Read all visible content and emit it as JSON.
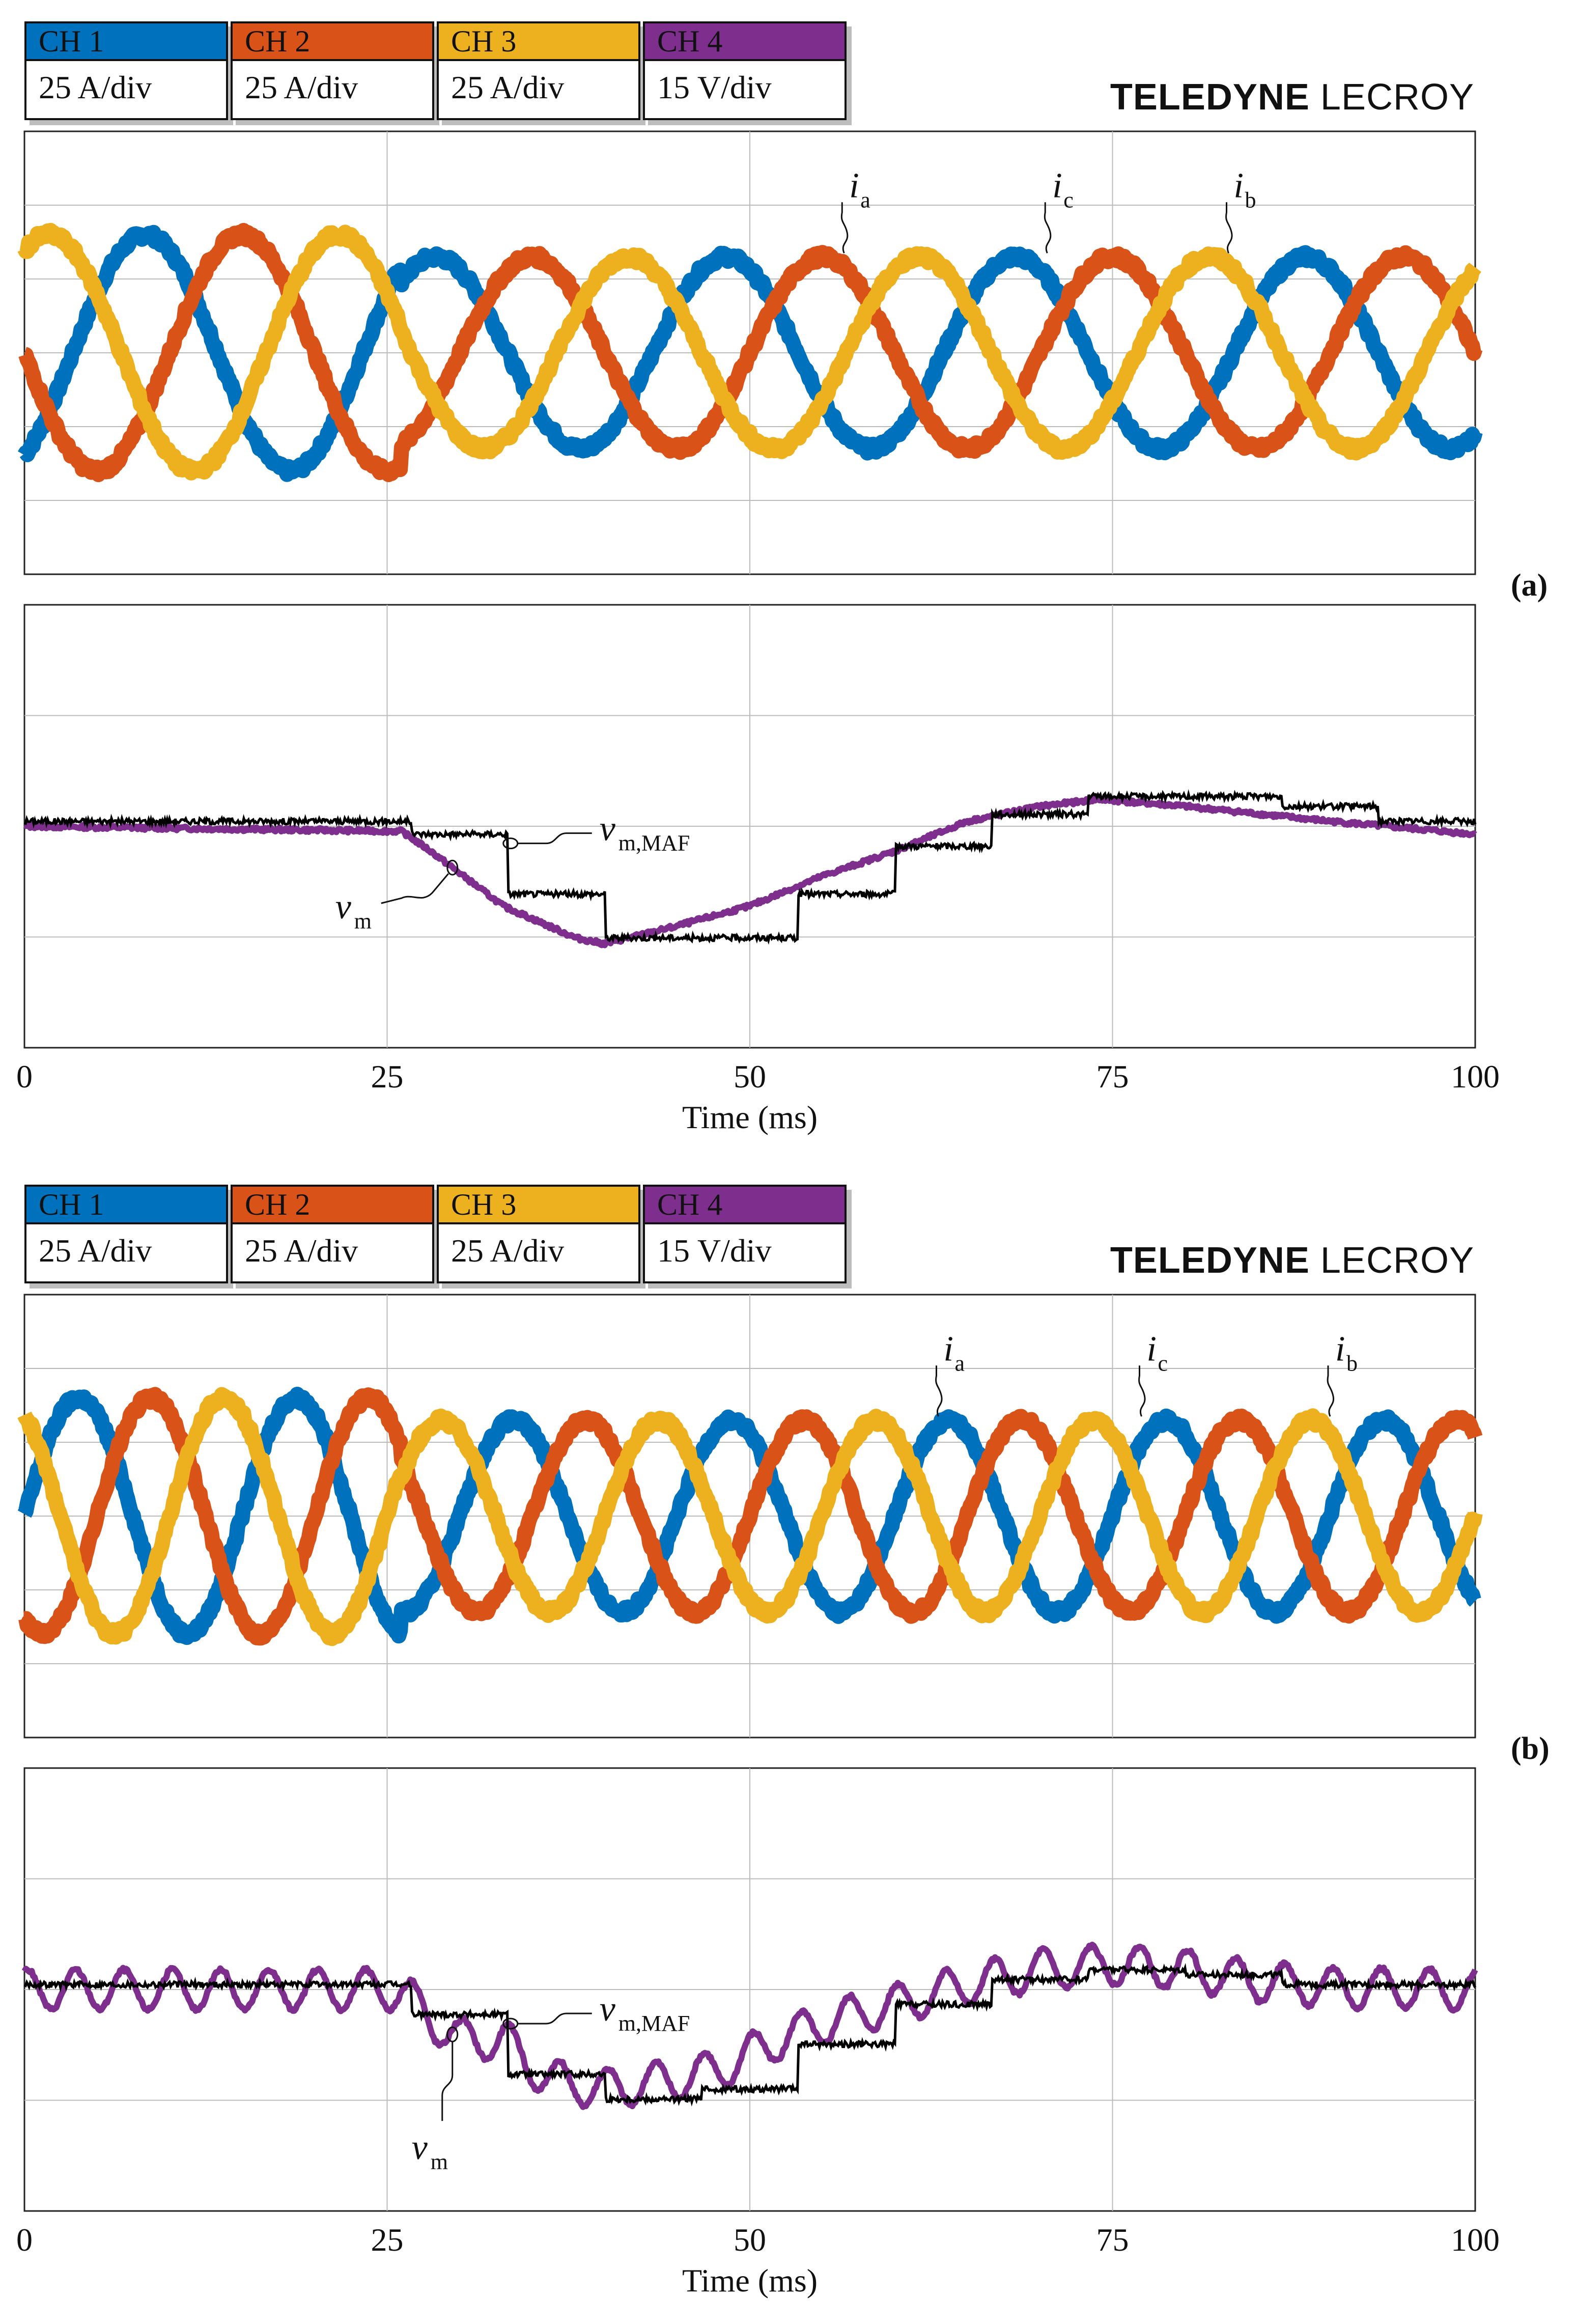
{
  "brand": {
    "bold": "TELEDYNE",
    "light": "LECROY"
  },
  "channels": [
    {
      "name": "CH 1",
      "scale": "25 A/div",
      "color": "#0072BD"
    },
    {
      "name": "CH 2",
      "scale": "25 A/div",
      "color": "#D95319"
    },
    {
      "name": "CH 3",
      "scale": "25 A/div",
      "color": "#EDB120"
    },
    {
      "name": "CH 4",
      "scale": "15 V/div",
      "color": "#7E2F8E"
    }
  ],
  "chart_data": [
    {
      "id": "a",
      "panel_label": "(a)",
      "type": "line",
      "xlabel": "Time (ms)",
      "xlim": [
        0,
        100
      ],
      "xticks": [
        0,
        25,
        50,
        75,
        100
      ],
      "tick_labels": [
        "0",
        "25",
        "50",
        "75",
        "100"
      ],
      "grid": true,
      "currents": {
        "ylim_div": [
          -3,
          3
        ],
        "frequency_hz": 50,
        "amplitude_div_before": 1.6,
        "amplitude_div_after": 1.3,
        "step_time_ms": 26,
        "phase_ia_deg": -60,
        "series": [
          {
            "name": "i_a",
            "channel": "CH 1",
            "phase_offset_deg": 0
          },
          {
            "name": "i_b",
            "channel": "CH 2",
            "phase_offset_deg": -120
          },
          {
            "name": "i_c",
            "channel": "CH 3",
            "phase_offset_deg": 120
          }
        ],
        "annotations": [
          {
            "label_main": "i",
            "label_sub": "a",
            "t_ms": 56.5
          },
          {
            "label_main": "i",
            "label_sub": "c",
            "t_ms": 70.5
          },
          {
            "label_main": "i",
            "label_sub": "b",
            "t_ms": 83.0
          }
        ]
      },
      "voltage": {
        "ylim_div": [
          -2,
          2
        ],
        "vm_ripple_div": 0.0,
        "vm_points": [
          [
            0,
            0
          ],
          [
            26,
            -0.05
          ],
          [
            28,
            -0.25
          ],
          [
            33,
            -0.8
          ],
          [
            38,
            -1.12
          ],
          [
            40,
            -1.18
          ],
          [
            45,
            -1.0
          ],
          [
            50,
            -0.8
          ],
          [
            55,
            -0.5
          ],
          [
            60,
            -0.25
          ],
          [
            65,
            0.05
          ],
          [
            70,
            0.2
          ],
          [
            74,
            0.27
          ],
          [
            80,
            0.2
          ],
          [
            90,
            0.05
          ],
          [
            100,
            -0.08
          ]
        ],
        "vmaf_points": [
          [
            0,
            0.05
          ],
          [
            26.7,
            0.05
          ],
          [
            26.7,
            -0.08
          ],
          [
            33.3,
            -0.08
          ],
          [
            33.3,
            -0.68
          ],
          [
            40,
            -0.68
          ],
          [
            40,
            -1.12
          ],
          [
            53.3,
            -1.12
          ],
          [
            53.3,
            -0.68
          ],
          [
            60,
            -0.68
          ],
          [
            60,
            -0.2
          ],
          [
            66.7,
            -0.2
          ],
          [
            66.7,
            0.12
          ],
          [
            73.3,
            0.12
          ],
          [
            73.3,
            0.3
          ],
          [
            86.7,
            0.3
          ],
          [
            86.7,
            0.2
          ],
          [
            93.3,
            0.2
          ],
          [
            93.3,
            0.05
          ],
          [
            100,
            0.05
          ]
        ],
        "labels": {
          "vm_main": "v",
          "vm_sub": "m",
          "vmaf_main": "v",
          "vmaf_sub": "m,MAF"
        }
      }
    },
    {
      "id": "b",
      "panel_label": "(b)",
      "type": "line",
      "xlabel": "Time (ms)",
      "xlim": [
        0,
        100
      ],
      "xticks": [
        0,
        25,
        50,
        75,
        100
      ],
      "tick_labels": [
        "0",
        "25",
        "50",
        "75",
        "100"
      ],
      "grid": true,
      "currents": {
        "ylim_div": [
          -3,
          3
        ],
        "frequency_hz": 66.7,
        "amplitude_div_before": 1.6,
        "amplitude_div_after": 1.3,
        "step_time_ms": 26,
        "phase_ia_deg": 0,
        "series": [
          {
            "name": "i_a",
            "channel": "CH 1",
            "phase_offset_deg": 0
          },
          {
            "name": "i_b",
            "channel": "CH 2",
            "phase_offset_deg": -120
          },
          {
            "name": "i_c",
            "channel": "CH 3",
            "phase_offset_deg": 120
          }
        ],
        "annotations": [
          {
            "label_main": "i",
            "label_sub": "a",
            "t_ms": 63.0
          },
          {
            "label_main": "i",
            "label_sub": "c",
            "t_ms": 77.0
          },
          {
            "label_main": "i",
            "label_sub": "b",
            "t_ms": 90.0
          }
        ]
      },
      "voltage": {
        "ylim_div": [
          -2,
          2
        ],
        "vm_ripple_div": 0.2,
        "vm_points": [
          [
            0,
            0
          ],
          [
            26,
            0
          ],
          [
            28,
            -0.3
          ],
          [
            30,
            -0.5
          ],
          [
            33,
            -0.5
          ],
          [
            36,
            -0.9
          ],
          [
            40,
            -1.0
          ],
          [
            45,
            -0.9
          ],
          [
            48,
            -0.8
          ],
          [
            52,
            -0.5
          ],
          [
            56,
            -0.3
          ],
          [
            60,
            -0.15
          ],
          [
            65,
            0.05
          ],
          [
            70,
            0.2
          ],
          [
            75,
            0.25
          ],
          [
            80,
            0.2
          ],
          [
            85,
            0.08
          ],
          [
            90,
            0.02
          ],
          [
            100,
            0
          ]
        ],
        "vmaf_points": [
          [
            0,
            0.05
          ],
          [
            26.7,
            0.05
          ],
          [
            26.7,
            -0.25
          ],
          [
            33.3,
            -0.25
          ],
          [
            33.3,
            -0.85
          ],
          [
            40,
            -0.85
          ],
          [
            40,
            -1.1
          ],
          [
            46.7,
            -1.1
          ],
          [
            46.7,
            -1.0
          ],
          [
            53.3,
            -1.0
          ],
          [
            53.3,
            -0.55
          ],
          [
            60,
            -0.55
          ],
          [
            60,
            -0.15
          ],
          [
            66.7,
            -0.15
          ],
          [
            66.7,
            0.1
          ],
          [
            73.3,
            0.1
          ],
          [
            73.3,
            0.2
          ],
          [
            80,
            0.2
          ],
          [
            80,
            0.15
          ],
          [
            86.7,
            0.15
          ],
          [
            86.7,
            0.05
          ],
          [
            100,
            0.05
          ]
        ],
        "labels": {
          "vm_main": "v",
          "vm_sub": "m",
          "vmaf_main": "v",
          "vmaf_sub": "m,MAF"
        }
      }
    }
  ]
}
